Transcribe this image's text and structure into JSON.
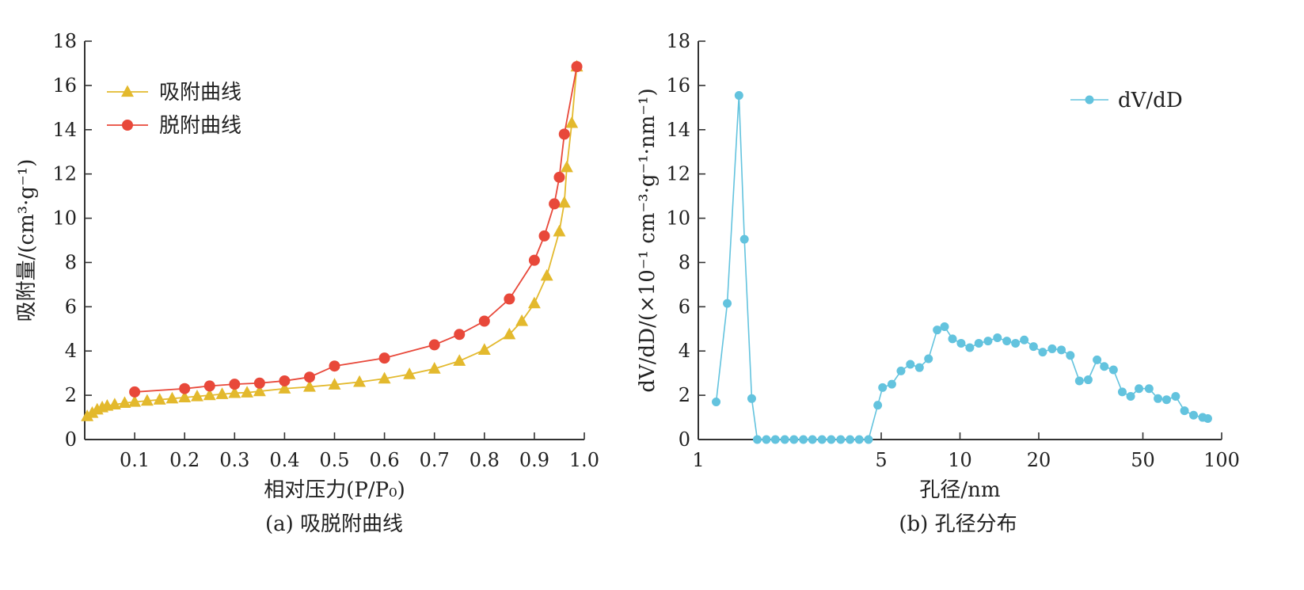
{
  "chart_data": [
    {
      "type": "line",
      "caption": "(a) 吸脱附曲线",
      "xlabel": "相对压力(P/P₀)",
      "ylabel": "吸附量/(cm³·g⁻¹)",
      "xlim": [
        0,
        1.0
      ],
      "ylim": [
        0,
        18
      ],
      "xticks": [
        0.1,
        0.2,
        0.3,
        0.4,
        0.5,
        0.6,
        0.7,
        0.8,
        0.9,
        1.0
      ],
      "xtick_labels": [
        "0.1",
        "0.2",
        "0.3",
        "0.4",
        "0.5",
        "0.6",
        "0.7",
        "0.8",
        "0.9",
        "1.0"
      ],
      "yticks": [
        0,
        2,
        4,
        6,
        8,
        10,
        12,
        14,
        16,
        18
      ],
      "ytick_labels": [
        "0",
        "2",
        "4",
        "6",
        "8",
        "10",
        "12",
        "14",
        "16",
        "18"
      ],
      "legend_position": "top-left",
      "series": [
        {
          "name": "吸附曲线",
          "color": "#e3b92d",
          "marker": "triangle",
          "x": [
            0.005,
            0.015,
            0.025,
            0.035,
            0.045,
            0.06,
            0.08,
            0.1,
            0.125,
            0.15,
            0.175,
            0.2,
            0.225,
            0.25,
            0.275,
            0.3,
            0.325,
            0.35,
            0.4,
            0.45,
            0.5,
            0.55,
            0.6,
            0.65,
            0.7,
            0.75,
            0.8,
            0.85,
            0.875,
            0.9,
            0.925,
            0.95,
            0.96,
            0.965,
            0.975,
            0.985
          ],
          "y": [
            1.05,
            1.2,
            1.35,
            1.45,
            1.52,
            1.58,
            1.65,
            1.7,
            1.75,
            1.8,
            1.85,
            1.9,
            1.95,
            2.0,
            2.05,
            2.1,
            2.12,
            2.18,
            2.3,
            2.38,
            2.48,
            2.6,
            2.75,
            2.95,
            3.2,
            3.55,
            4.05,
            4.75,
            5.35,
            6.15,
            7.4,
            9.4,
            10.7,
            12.3,
            14.3,
            16.85
          ]
        },
        {
          "name": "脱附曲线",
          "color": "#e8483a",
          "marker": "circle",
          "x": [
            0.1,
            0.2,
            0.25,
            0.3,
            0.35,
            0.4,
            0.45,
            0.5,
            0.6,
            0.7,
            0.75,
            0.8,
            0.85,
            0.9,
            0.92,
            0.94,
            0.95,
            0.96,
            0.985
          ],
          "y": [
            2.15,
            2.3,
            2.42,
            2.5,
            2.55,
            2.65,
            2.82,
            3.32,
            3.68,
            4.28,
            4.75,
            5.35,
            6.35,
            8.1,
            9.2,
            10.65,
            11.85,
            13.8,
            16.85
          ]
        }
      ]
    },
    {
      "type": "line",
      "caption": "(b) 孔径分布",
      "xlabel": "孔径/nm",
      "ylabel": "dV/dD/(×10⁻¹ cm⁻³·g⁻¹·nm⁻¹)",
      "xscale": "log",
      "xlim": [
        1,
        100
      ],
      "ylim": [
        0,
        18
      ],
      "xticks": [
        1,
        5,
        10,
        20,
        50,
        100
      ],
      "xtick_labels": [
        "1",
        "5",
        "10",
        "20",
        "50",
        "100"
      ],
      "yticks": [
        0,
        2,
        4,
        6,
        8,
        10,
        12,
        14,
        16,
        18
      ],
      "ytick_labels": [
        "0",
        "2",
        "4",
        "6",
        "8",
        "10",
        "12",
        "14",
        "16",
        "18"
      ],
      "legend_position": "top-right",
      "series": [
        {
          "name": "dV/dD",
          "color": "#63c3de",
          "marker": "circle",
          "x": [
            1.17,
            1.29,
            1.43,
            1.5,
            1.6,
            1.68,
            1.82,
            1.97,
            2.14,
            2.32,
            2.52,
            2.73,
            2.97,
            3.22,
            3.5,
            3.8,
            4.12,
            4.47,
            4.85,
            5.06,
            5.49,
            5.95,
            6.46,
            7.0,
            7.58,
            8.18,
            8.73,
            9.36,
            10.1,
            10.9,
            11.8,
            12.8,
            13.9,
            15.1,
            16.3,
            17.6,
            19.1,
            20.7,
            22.5,
            24.4,
            26.4,
            28.6,
            30.9,
            33.4,
            35.6,
            38.6,
            41.7,
            44.9,
            48.3,
            52.8,
            57.1,
            61.6,
            66.7,
            72.1,
            78.1,
            84.6,
            88.5
          ],
          "y": [
            1.7,
            6.15,
            15.55,
            9.05,
            1.85,
            0.0,
            0.0,
            0.0,
            0.0,
            0.0,
            0.0,
            0.0,
            0.0,
            0.0,
            0.0,
            0.0,
            0.0,
            0.0,
            1.55,
            2.35,
            2.5,
            3.1,
            3.4,
            3.25,
            3.65,
            4.95,
            5.1,
            4.55,
            4.35,
            4.15,
            4.35,
            4.45,
            4.6,
            4.45,
            4.35,
            4.5,
            4.2,
            3.95,
            4.1,
            4.05,
            3.8,
            2.65,
            2.7,
            3.6,
            3.3,
            3.15,
            2.15,
            1.95,
            2.3,
            2.3,
            1.85,
            1.8,
            1.95,
            1.3,
            1.1,
            1.0,
            0.95
          ]
        }
      ]
    }
  ]
}
